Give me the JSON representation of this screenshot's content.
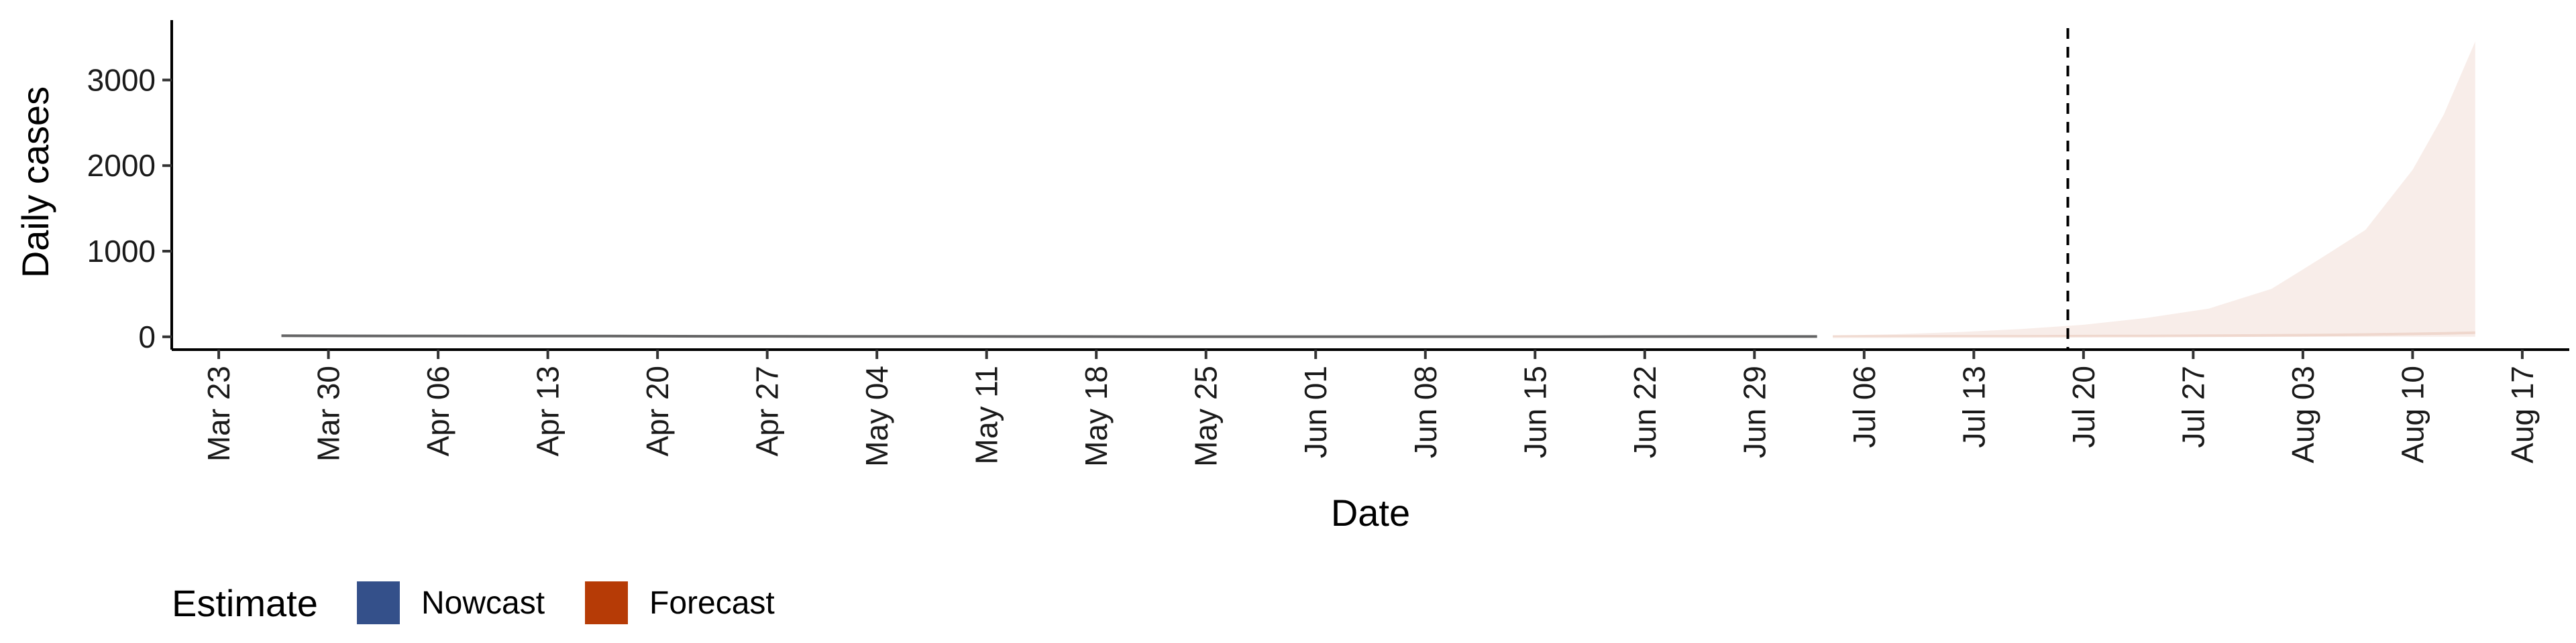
{
  "chart_data": {
    "type": "area",
    "title": "",
    "xlabel": "Date",
    "ylabel": "Daily cases",
    "x_axis": {
      "type": "date",
      "range": [
        "2020-03-20",
        "2020-08-20"
      ],
      "ticks": [
        "2020-03-23",
        "2020-03-30",
        "2020-04-06",
        "2020-04-13",
        "2020-04-20",
        "2020-04-27",
        "2020-05-04",
        "2020-05-11",
        "2020-05-18",
        "2020-05-25",
        "2020-06-01",
        "2020-06-08",
        "2020-06-15",
        "2020-06-22",
        "2020-06-29",
        "2020-07-06",
        "2020-07-13",
        "2020-07-20",
        "2020-07-27",
        "2020-08-03",
        "2020-08-10",
        "2020-08-17"
      ],
      "tick_labels": [
        "Mar 23",
        "Mar 30",
        "Apr 06",
        "Apr 13",
        "Apr 20",
        "Apr 27",
        "May 04",
        "May 11",
        "May 18",
        "May 25",
        "Jun 01",
        "Jun 08",
        "Jun 15",
        "Jun 22",
        "Jun 29",
        "Jul 06",
        "Jul 13",
        "Jul 20",
        "Jul 27",
        "Aug 03",
        "Aug 10",
        "Aug 17"
      ]
    },
    "y_axis": {
      "range": [
        -150,
        3700
      ],
      "ticks": [
        0,
        1000,
        2000,
        3000
      ],
      "tick_labels": [
        "0",
        "1000",
        "2000",
        "3000"
      ]
    },
    "grid": false,
    "vline": {
      "x": "2020-07-19",
      "style": "dashed"
    },
    "legend": {
      "title": "Estimate",
      "placement": "bottom-left",
      "entries": [
        {
          "label": "Nowcast",
          "color": "#34508a"
        },
        {
          "label": "Forecast",
          "color": "#b63b06"
        }
      ]
    },
    "series": [
      {
        "name": "Nowcast",
        "color": "#34508a",
        "x": [
          "2020-03-27",
          "2020-04-03",
          "2020-04-10",
          "2020-04-17",
          "2020-04-24",
          "2020-05-01",
          "2020-05-08",
          "2020-05-15",
          "2020-05-22",
          "2020-05-29",
          "2020-06-05",
          "2020-06-12",
          "2020-06-19",
          "2020-06-26",
          "2020-07-03"
        ],
        "median": [
          12,
          10,
          9,
          8,
          6,
          5,
          4,
          3,
          2,
          2,
          2,
          2,
          2,
          3,
          3
        ],
        "lower": [
          10,
          8,
          7,
          6,
          4,
          3,
          2,
          1,
          1,
          1,
          1,
          1,
          1,
          1,
          1
        ],
        "upper": [
          14,
          12,
          11,
          10,
          8,
          7,
          6,
          5,
          4,
          4,
          4,
          4,
          5,
          6,
          8
        ]
      },
      {
        "name": "Forecast",
        "color": "#b63b06",
        "x": [
          "2020-07-04",
          "2020-07-08",
          "2020-07-12",
          "2020-07-16",
          "2020-07-20",
          "2020-07-24",
          "2020-07-28",
          "2020-08-01",
          "2020-08-04",
          "2020-08-07",
          "2020-08-10",
          "2020-08-12",
          "2020-08-14"
        ],
        "median": [
          2,
          3,
          4,
          5,
          7,
          9,
          12,
          16,
          20,
          26,
          34,
          40,
          48
        ],
        "lower": [
          0,
          0,
          0,
          0,
          0,
          0,
          0,
          0,
          0,
          0,
          0,
          0,
          0
        ],
        "upper": [
          15,
          30,
          55,
          90,
          140,
          220,
          330,
          560,
          900,
          1250,
          1950,
          2600,
          3450
        ]
      }
    ]
  }
}
